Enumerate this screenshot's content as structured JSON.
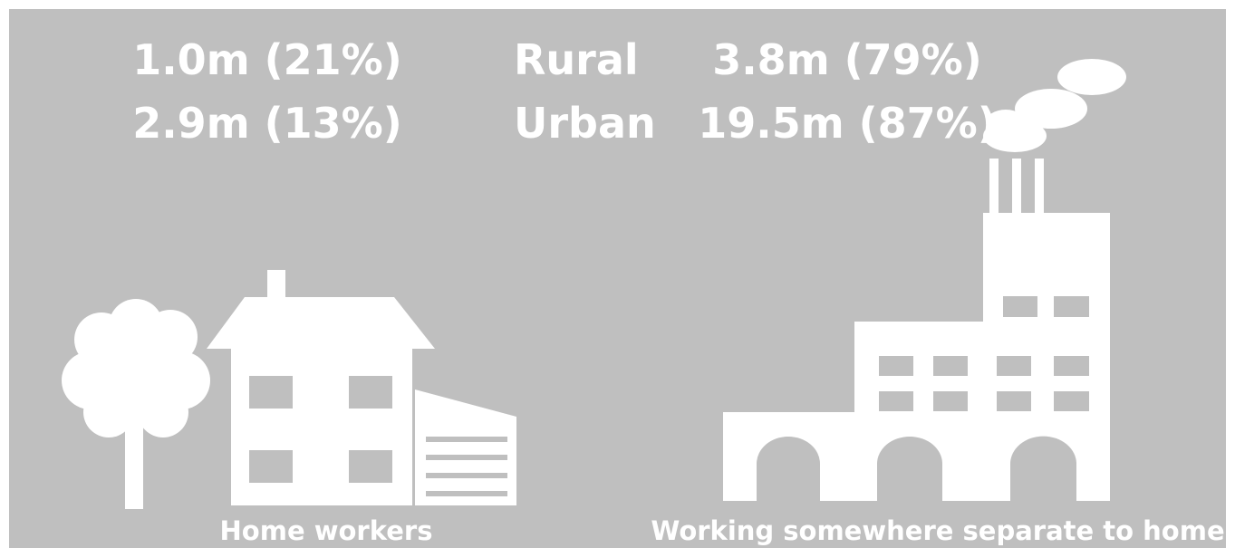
{
  "rows": [
    {
      "home": "1.0m (21%)",
      "area": "Rural",
      "separate": "3.8m (79%)"
    },
    {
      "home": "2.9m (13%)",
      "area": "Urban",
      "separate": "19.5m (87%)"
    }
  ],
  "captions": {
    "home": "Home workers",
    "separate": "Working somewhere separate to home"
  }
}
